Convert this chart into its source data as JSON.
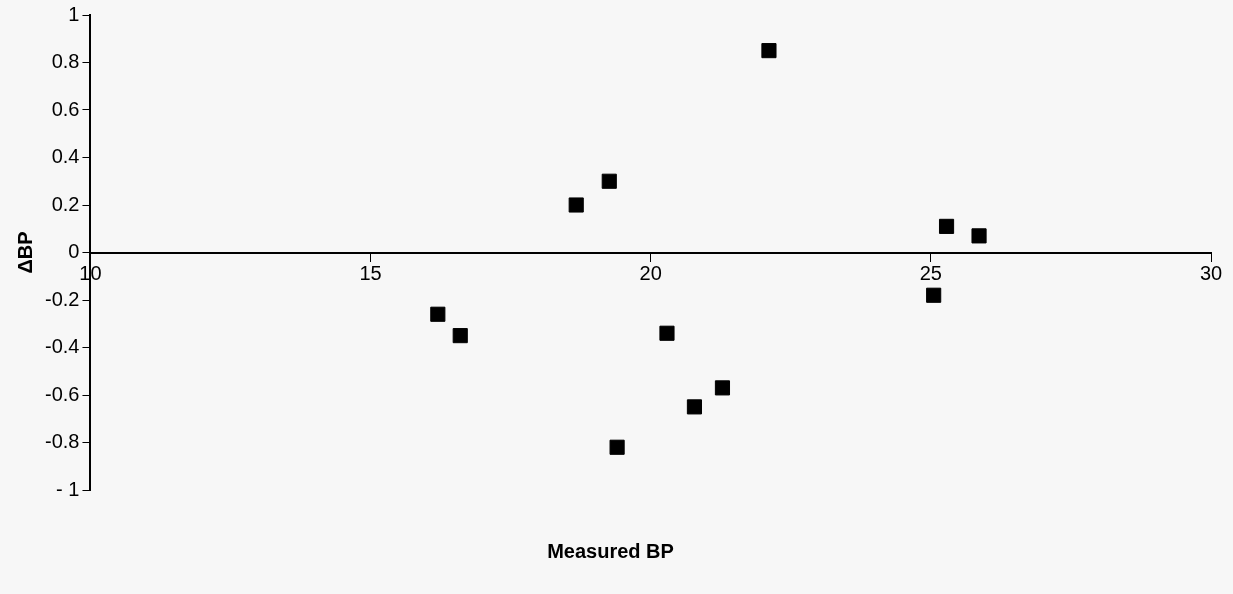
{
  "chart_data": {
    "type": "scatter",
    "xlabel": "Measured BP",
    "ylabel": "ΔBP",
    "x": [
      22.11,
      19.26,
      18.67,
      16.2,
      16.6,
      20.29,
      21.28,
      20.78,
      19.4,
      25.28,
      25.86,
      25.05
    ],
    "values": [
      0.85,
      0.3,
      0.2,
      -0.26,
      -0.35,
      -0.34,
      -0.57,
      -0.65,
      -0.82,
      0.11,
      0.07,
      -0.18
    ],
    "color": "#000000",
    "marker": "square",
    "grid": false,
    "legend": false,
    "xlim": [
      10,
      30
    ],
    "xticks": [
      10,
      15,
      20,
      25,
      30
    ],
    "ylim": [
      -1,
      1
    ],
    "yticks": [
      {
        "value": -1,
        "label": "- 1"
      },
      -0.8,
      -0.6,
      -0.4,
      -0.2,
      0,
      0.2,
      0.4,
      0.6,
      0.8,
      1
    ]
  }
}
